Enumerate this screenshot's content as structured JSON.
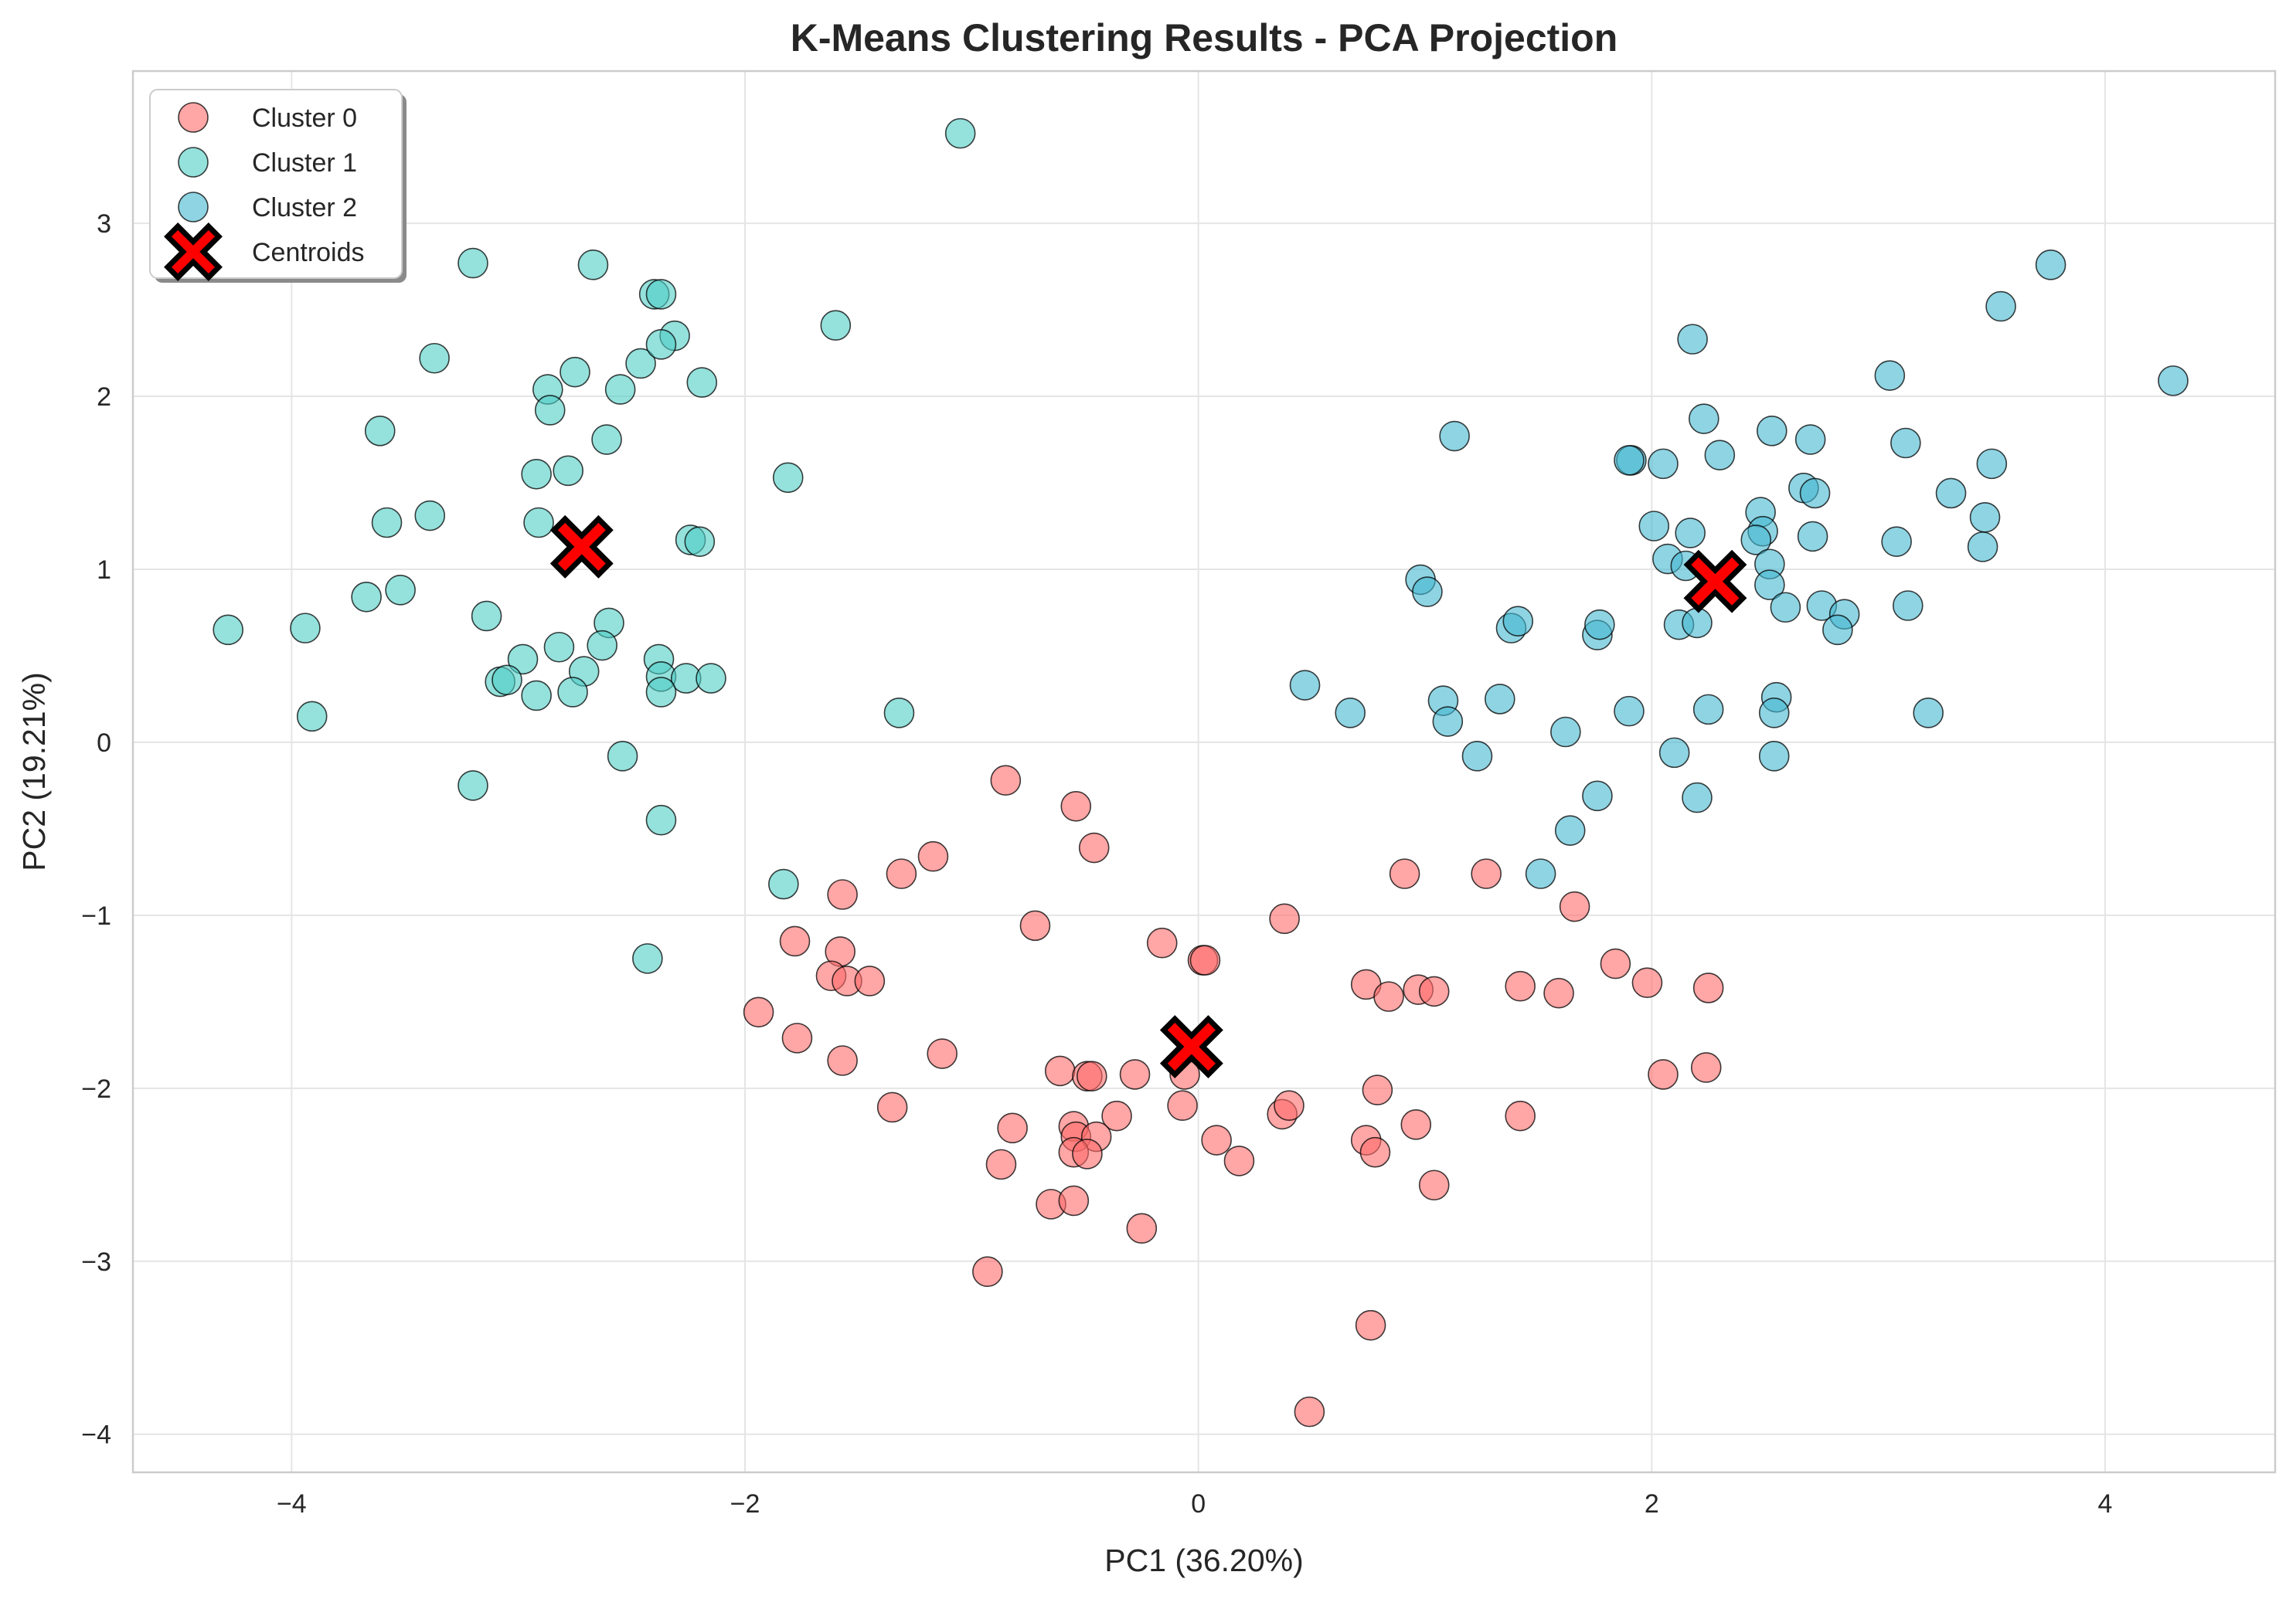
{
  "chart_data": {
    "type": "scatter",
    "title": "K-Means Clustering Results - PCA Projection",
    "xlabel": "PC1 (36.20%)",
    "ylabel": "PC2 (19.21%)",
    "xlim": [
      -4.7,
      4.75
    ],
    "ylim": [
      -4.22,
      3.88
    ],
    "xticks": [
      -4,
      -2,
      0,
      2,
      4
    ],
    "yticks": [
      -4,
      -3,
      -2,
      -1,
      0,
      1,
      2,
      3
    ],
    "xtick_labels": [
      "−4",
      "−2",
      "0",
      "2",
      "4"
    ],
    "ytick_labels": [
      "−4",
      "−3",
      "−2",
      "−1",
      "0",
      "1",
      "2",
      "3"
    ],
    "grid": true,
    "legend_position": "top-left",
    "series": [
      {
        "name": "Cluster 0",
        "color": "#ff6b6b",
        "marker": "circle",
        "points": [
          [
            -0.85,
            -0.22
          ],
          [
            -0.54,
            -0.37
          ],
          [
            -0.46,
            -0.61
          ],
          [
            -1.57,
            -0.88
          ],
          [
            -1.31,
            -0.76
          ],
          [
            -1.17,
            -0.66
          ],
          [
            -0.72,
            -1.06
          ],
          [
            -1.78,
            -1.15
          ],
          [
            -1.58,
            -1.21
          ],
          [
            -1.62,
            -1.35
          ],
          [
            -1.55,
            -1.38
          ],
          [
            -1.45,
            -1.38
          ],
          [
            -1.94,
            -1.56
          ],
          [
            -1.77,
            -1.71
          ],
          [
            -1.57,
            -1.84
          ],
          [
            -1.13,
            -1.8
          ],
          [
            -1.35,
            -2.11
          ],
          [
            -0.61,
            -1.9
          ],
          [
            -0.49,
            -1.93
          ],
          [
            -0.47,
            -1.93
          ],
          [
            -0.28,
            -1.92
          ],
          [
            -0.06,
            -1.92
          ],
          [
            -0.16,
            -1.16
          ],
          [
            0.02,
            -1.26
          ],
          [
            0.03,
            -1.26
          ],
          [
            0.38,
            -1.02
          ],
          [
            -0.07,
            -2.1
          ],
          [
            -0.36,
            -2.16
          ],
          [
            -0.55,
            -2.22
          ],
          [
            -0.54,
            -2.28
          ],
          [
            -0.45,
            -2.28
          ],
          [
            -0.55,
            -2.37
          ],
          [
            -0.49,
            -2.38
          ],
          [
            -0.82,
            -2.23
          ],
          [
            -0.87,
            -2.44
          ],
          [
            -0.65,
            -2.67
          ],
          [
            -0.55,
            -2.65
          ],
          [
            -0.25,
            -2.81
          ],
          [
            -0.93,
            -3.06
          ],
          [
            0.08,
            -2.3
          ],
          [
            0.18,
            -2.42
          ],
          [
            0.37,
            -2.15
          ],
          [
            0.4,
            -2.1
          ],
          [
            0.74,
            -1.4
          ],
          [
            0.84,
            -1.47
          ],
          [
            0.97,
            -1.43
          ],
          [
            1.04,
            -1.44
          ],
          [
            0.91,
            -0.76
          ],
          [
            1.27,
            -0.76
          ],
          [
            0.79,
            -2.01
          ],
          [
            0.74,
            -2.3
          ],
          [
            0.78,
            -2.37
          ],
          [
            0.96,
            -2.21
          ],
          [
            1.04,
            -2.56
          ],
          [
            1.42,
            -1.41
          ],
          [
            1.59,
            -1.45
          ],
          [
            1.66,
            -0.95
          ],
          [
            1.84,
            -1.28
          ],
          [
            1.98,
            -1.39
          ],
          [
            2.25,
            -1.42
          ],
          [
            1.42,
            -2.16
          ],
          [
            2.05,
            -1.92
          ],
          [
            2.24,
            -1.88
          ],
          [
            0.76,
            -3.37
          ],
          [
            0.49,
            -3.87
          ]
        ]
      },
      {
        "name": "Cluster 1",
        "color": "#4ecdc4",
        "marker": "circle",
        "points": [
          [
            -1.05,
            3.52
          ],
          [
            -3.2,
            2.77
          ],
          [
            -2.67,
            2.76
          ],
          [
            -2.4,
            2.59
          ],
          [
            -2.37,
            2.59
          ],
          [
            -2.31,
            2.35
          ],
          [
            -2.46,
            2.19
          ],
          [
            -2.37,
            2.3
          ],
          [
            -1.6,
            2.41
          ],
          [
            -3.37,
            2.22
          ],
          [
            -2.75,
            2.14
          ],
          [
            -2.87,
            2.04
          ],
          [
            -2.86,
            1.92
          ],
          [
            -2.55,
            2.04
          ],
          [
            -2.19,
            2.08
          ],
          [
            -3.61,
            1.8
          ],
          [
            -2.61,
            1.75
          ],
          [
            -1.81,
            1.53
          ],
          [
            -2.92,
            1.55
          ],
          [
            -2.78,
            1.57
          ],
          [
            -3.58,
            1.27
          ],
          [
            -3.39,
            1.31
          ],
          [
            -2.91,
            1.27
          ],
          [
            -2.24,
            1.17
          ],
          [
            -2.2,
            1.16
          ],
          [
            -3.67,
            0.84
          ],
          [
            -3.52,
            0.88
          ],
          [
            -3.14,
            0.73
          ],
          [
            -2.6,
            0.69
          ],
          [
            -4.28,
            0.65
          ],
          [
            -3.94,
            0.66
          ],
          [
            -2.98,
            0.48
          ],
          [
            -2.82,
            0.55
          ],
          [
            -2.63,
            0.56
          ],
          [
            -2.38,
            0.48
          ],
          [
            -2.71,
            0.41
          ],
          [
            -3.08,
            0.35
          ],
          [
            -3.05,
            0.36
          ],
          [
            -2.92,
            0.27
          ],
          [
            -2.76,
            0.29
          ],
          [
            -2.37,
            0.38
          ],
          [
            -2.26,
            0.37
          ],
          [
            -2.15,
            0.37
          ],
          [
            -2.37,
            0.29
          ],
          [
            -3.91,
            0.15
          ],
          [
            -1.32,
            0.17
          ],
          [
            -2.54,
            -0.08
          ],
          [
            -3.2,
            -0.25
          ],
          [
            -2.37,
            -0.45
          ],
          [
            -1.83,
            -0.82
          ],
          [
            -2.43,
            -1.25
          ]
        ]
      },
      {
        "name": "Cluster 2",
        "color": "#45b7d1",
        "marker": "circle",
        "points": [
          [
            3.76,
            2.76
          ],
          [
            4.3,
            2.09
          ],
          [
            3.54,
            2.52
          ],
          [
            2.18,
            2.33
          ],
          [
            3.05,
            2.12
          ],
          [
            2.23,
            1.87
          ],
          [
            2.53,
            1.8
          ],
          [
            2.7,
            1.75
          ],
          [
            3.12,
            1.73
          ],
          [
            1.13,
            1.77
          ],
          [
            1.91,
            1.63
          ],
          [
            1.9,
            1.63
          ],
          [
            2.3,
            1.66
          ],
          [
            2.05,
            1.61
          ],
          [
            3.5,
            1.61
          ],
          [
            2.67,
            1.47
          ],
          [
            2.72,
            1.44
          ],
          [
            3.32,
            1.44
          ],
          [
            2.48,
            1.33
          ],
          [
            3.47,
            1.3
          ],
          [
            2.01,
            1.25
          ],
          [
            2.49,
            1.22
          ],
          [
            2.17,
            1.21
          ],
          [
            2.71,
            1.19
          ],
          [
            3.08,
            1.16
          ],
          [
            2.46,
            1.17
          ],
          [
            3.46,
            1.13
          ],
          [
            2.07,
            1.06
          ],
          [
            2.15,
            1.02
          ],
          [
            2.52,
            1.03
          ],
          [
            0.98,
            0.94
          ],
          [
            1.01,
            0.87
          ],
          [
            2.52,
            0.91
          ],
          [
            2.75,
            0.79
          ],
          [
            2.59,
            0.78
          ],
          [
            3.13,
            0.79
          ],
          [
            2.85,
            0.74
          ],
          [
            2.12,
            0.68
          ],
          [
            2.2,
            0.69
          ],
          [
            2.82,
            0.65
          ],
          [
            1.38,
            0.66
          ],
          [
            1.41,
            0.7
          ],
          [
            1.76,
            0.62
          ],
          [
            1.77,
            0.68
          ],
          [
            0.47,
            0.33
          ],
          [
            1.08,
            0.24
          ],
          [
            1.33,
            0.25
          ],
          [
            2.55,
            0.26
          ],
          [
            0.67,
            0.17
          ],
          [
            1.1,
            0.12
          ],
          [
            1.9,
            0.18
          ],
          [
            2.25,
            0.19
          ],
          [
            2.54,
            0.17
          ],
          [
            3.22,
            0.17
          ],
          [
            1.62,
            0.06
          ],
          [
            1.23,
            -0.08
          ],
          [
            2.1,
            -0.06
          ],
          [
            2.54,
            -0.08
          ],
          [
            1.76,
            -0.31
          ],
          [
            2.2,
            -0.32
          ],
          [
            1.64,
            -0.51
          ],
          [
            1.51,
            -0.76
          ]
        ]
      },
      {
        "name": "Centroids",
        "color": "#ff0000",
        "marker": "x",
        "points": [
          [
            -2.72,
            1.13
          ],
          [
            -0.03,
            -1.76
          ],
          [
            2.28,
            0.93
          ]
        ]
      }
    ]
  }
}
